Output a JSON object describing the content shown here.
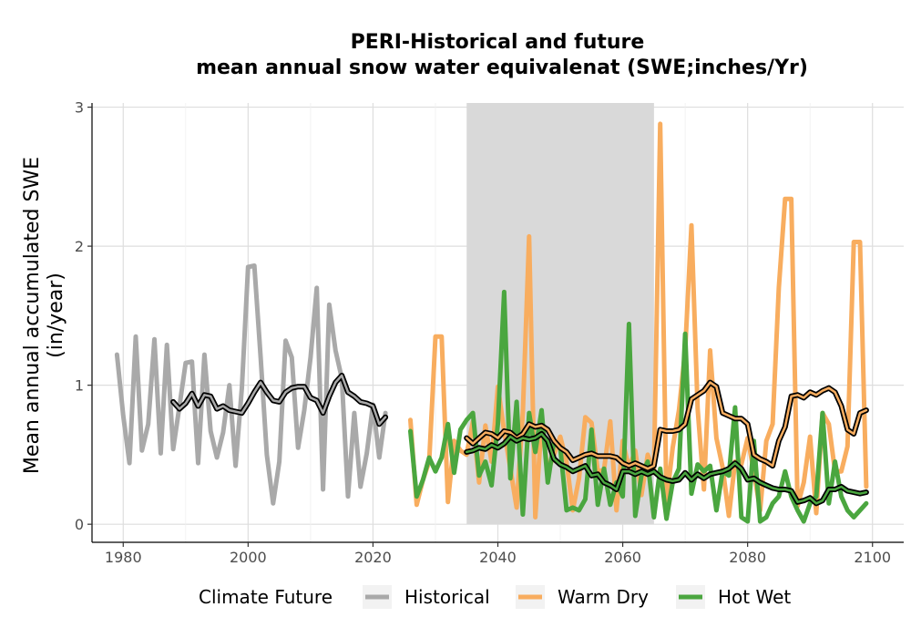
{
  "chart_data": {
    "type": "line",
    "title_line1": "PERI-Historical and future",
    "title_line2": "mean annual snow water equivalenat (SWE;inches/Yr)",
    "ylabel_line1": "Mean annual accumulated SWE",
    "ylabel_line2": "(in/year)",
    "xlabel": "",
    "xlim": [
      1975,
      2105
    ],
    "ylim": [
      -0.13,
      3.03
    ],
    "x_ticks": [
      1980,
      2000,
      2020,
      2040,
      2060,
      2080,
      2100
    ],
    "y_ticks": [
      0,
      1,
      2,
      3
    ],
    "grid": true,
    "shaded_period": [
      2035,
      2065
    ],
    "legend": {
      "title": "Climate Future",
      "position": "bottom",
      "entries": [
        "Historical",
        "Warm Dry",
        "Hot Wet"
      ]
    },
    "colors": {
      "Historical": "#a9a9a9",
      "Warm Dry": "#f8ad5f",
      "Hot Wet": "#4aa63f",
      "smooth": "#000000",
      "shade": "#d9d9d9",
      "grid": "#dedede"
    },
    "series": [
      {
        "name": "Historical",
        "x": [
          1979,
          1980,
          1981,
          1982,
          1983,
          1984,
          1985,
          1986,
          1987,
          1988,
          1989,
          1990,
          1991,
          1992,
          1993,
          1994,
          1995,
          1996,
          1997,
          1998,
          1999,
          2000,
          2001,
          2002,
          2003,
          2004,
          2005,
          2006,
          2007,
          2008,
          2009,
          2010,
          2011,
          2012,
          2013,
          2014,
          2015,
          2016,
          2017,
          2018,
          2019,
          2020,
          2021,
          2022
        ],
        "y": [
          1.22,
          0.78,
          0.44,
          1.35,
          0.53,
          0.72,
          1.33,
          0.51,
          1.29,
          0.54,
          0.85,
          1.16,
          1.17,
          0.44,
          1.22,
          0.67,
          0.48,
          0.66,
          1.0,
          0.42,
          0.98,
          1.85,
          1.86,
          1.2,
          0.5,
          0.15,
          0.45,
          1.32,
          1.2,
          0.55,
          0.82,
          1.2,
          1.7,
          0.25,
          1.58,
          1.25,
          1.05,
          0.2,
          0.8,
          0.27,
          0.51,
          0.86,
          0.48,
          0.8
        ],
        "smooth_x": [
          1988,
          1989,
          1990,
          1991,
          1992,
          1993,
          1994,
          1995,
          1996,
          1997,
          1998,
          1999,
          2000,
          2001,
          2002,
          2003,
          2004,
          2005,
          2006,
          2007,
          2008,
          2009,
          2010,
          2011,
          2012,
          2013,
          2014,
          2015,
          2016,
          2017,
          2018,
          2019,
          2020,
          2021,
          2022
        ],
        "smooth_y": [
          0.88,
          0.83,
          0.87,
          0.94,
          0.85,
          0.93,
          0.92,
          0.83,
          0.85,
          0.82,
          0.81,
          0.8,
          0.87,
          0.95,
          1.02,
          0.95,
          0.89,
          0.88,
          0.95,
          0.98,
          0.99,
          0.99,
          0.91,
          0.89,
          0.8,
          0.92,
          1.02,
          1.07,
          0.95,
          0.92,
          0.88,
          0.87,
          0.85,
          0.72,
          0.77
        ]
      },
      {
        "name": "Warm Dry",
        "x": [
          2026,
          2027,
          2028,
          2029,
          2030,
          2031,
          2032,
          2033,
          2034,
          2035,
          2036,
          2037,
          2038,
          2039,
          2040,
          2041,
          2042,
          2043,
          2044,
          2045,
          2046,
          2047,
          2048,
          2049,
          2050,
          2051,
          2052,
          2053,
          2054,
          2055,
          2056,
          2057,
          2058,
          2059,
          2060,
          2061,
          2062,
          2063,
          2064,
          2065,
          2066,
          2067,
          2068,
          2069,
          2070,
          2071,
          2072,
          2073,
          2074,
          2075,
          2076,
          2077,
          2078,
          2079,
          2080,
          2081,
          2082,
          2083,
          2084,
          2085,
          2086,
          2087,
          2088,
          2089,
          2090,
          2091,
          2092,
          2093,
          2094,
          2095,
          2096,
          2097,
          2098,
          2099
        ],
        "y": [
          0.75,
          0.14,
          0.32,
          0.45,
          1.35,
          1.35,
          0.16,
          0.6,
          0.53,
          0.5,
          0.74,
          0.3,
          0.71,
          0.45,
          0.99,
          0.67,
          0.4,
          0.12,
          0.8,
          2.07,
          0.05,
          0.73,
          0.38,
          0.5,
          0.63,
          0.45,
          0.1,
          0.33,
          0.77,
          0.73,
          0.38,
          0.39,
          0.74,
          0.1,
          0.6,
          0.4,
          0.53,
          0.21,
          0.5,
          0.37,
          2.88,
          0.16,
          0.55,
          0.82,
          1.25,
          2.15,
          0.83,
          0.25,
          1.25,
          0.62,
          0.41,
          0.06,
          0.45,
          0.43,
          0.62,
          0.38,
          0.1,
          0.6,
          0.72,
          1.7,
          2.34,
          2.34,
          0.13,
          0.3,
          0.63,
          0.08,
          0.8,
          0.72,
          0.38,
          0.38,
          0.56,
          2.03,
          2.03,
          0.27
        ],
        "smooth_x": [
          2035,
          2036,
          2037,
          2038,
          2039,
          2040,
          2041,
          2042,
          2043,
          2044,
          2045,
          2046,
          2047,
          2048,
          2049,
          2050,
          2051,
          2052,
          2053,
          2054,
          2055,
          2056,
          2057,
          2058,
          2059,
          2060,
          2061,
          2062,
          2063,
          2064,
          2065,
          2066,
          2067,
          2068,
          2069,
          2070,
          2071,
          2072,
          2073,
          2074,
          2075,
          2076,
          2077,
          2078,
          2079,
          2080,
          2081,
          2082,
          2083,
          2084,
          2085,
          2086,
          2087,
          2088,
          2089,
          2090,
          2091,
          2092,
          2093,
          2094,
          2095,
          2096,
          2097,
          2098,
          2099
        ],
        "smooth_y": [
          0.62,
          0.58,
          0.62,
          0.66,
          0.65,
          0.62,
          0.67,
          0.66,
          0.62,
          0.65,
          0.72,
          0.7,
          0.71,
          0.68,
          0.6,
          0.55,
          0.52,
          0.46,
          0.48,
          0.5,
          0.51,
          0.49,
          0.49,
          0.49,
          0.48,
          0.44,
          0.42,
          0.44,
          0.42,
          0.4,
          0.42,
          0.68,
          0.67,
          0.67,
          0.68,
          0.72,
          0.9,
          0.93,
          0.96,
          1.02,
          0.99,
          0.8,
          0.78,
          0.76,
          0.76,
          0.72,
          0.5,
          0.47,
          0.45,
          0.42,
          0.6,
          0.7,
          0.92,
          0.93,
          0.91,
          0.95,
          0.93,
          0.96,
          0.98,
          0.95,
          0.85,
          0.68,
          0.65,
          0.8,
          0.82
        ]
      },
      {
        "name": "Hot Wet",
        "x": [
          2026,
          2027,
          2028,
          2029,
          2030,
          2031,
          2032,
          2033,
          2034,
          2035,
          2036,
          2037,
          2038,
          2039,
          2040,
          2041,
          2042,
          2043,
          2044,
          2045,
          2046,
          2047,
          2048,
          2049,
          2050,
          2051,
          2052,
          2053,
          2054,
          2055,
          2056,
          2057,
          2058,
          2059,
          2060,
          2061,
          2062,
          2063,
          2064,
          2065,
          2066,
          2067,
          2068,
          2069,
          2070,
          2071,
          2072,
          2073,
          2074,
          2075,
          2076,
          2077,
          2078,
          2079,
          2080,
          2081,
          2082,
          2083,
          2084,
          2085,
          2086,
          2087,
          2088,
          2089,
          2090,
          2091,
          2092,
          2093,
          2094,
          2095,
          2096,
          2097,
          2098,
          2099
        ],
        "y": [
          0.67,
          0.2,
          0.32,
          0.48,
          0.38,
          0.48,
          0.72,
          0.37,
          0.68,
          0.75,
          0.8,
          0.35,
          0.45,
          0.28,
          0.72,
          1.67,
          0.33,
          0.88,
          0.07,
          0.8,
          0.52,
          0.82,
          0.3,
          0.6,
          0.55,
          0.1,
          0.12,
          0.1,
          0.18,
          0.68,
          0.14,
          0.4,
          0.14,
          0.3,
          0.2,
          1.44,
          0.06,
          0.35,
          0.45,
          0.05,
          0.4,
          0.04,
          0.3,
          0.4,
          1.37,
          0.22,
          0.43,
          0.38,
          0.42,
          0.1,
          0.38,
          0.35,
          0.84,
          0.05,
          0.02,
          0.6,
          0.02,
          0.05,
          0.15,
          0.2,
          0.38,
          0.2,
          0.1,
          0.02,
          0.15,
          0.2,
          0.8,
          0.15,
          0.45,
          0.2,
          0.1,
          0.05,
          0.1,
          0.15
        ],
        "smooth_x": [
          2035,
          2036,
          2037,
          2038,
          2039,
          2040,
          2041,
          2042,
          2043,
          2044,
          2045,
          2046,
          2047,
          2048,
          2049,
          2050,
          2051,
          2052,
          2053,
          2054,
          2055,
          2056,
          2057,
          2058,
          2059,
          2060,
          2061,
          2062,
          2063,
          2064,
          2065,
          2066,
          2067,
          2068,
          2069,
          2070,
          2071,
          2072,
          2073,
          2074,
          2075,
          2076,
          2077,
          2078,
          2079,
          2080,
          2081,
          2082,
          2083,
          2084,
          2085,
          2086,
          2087,
          2088,
          2089,
          2090,
          2091,
          2092,
          2093,
          2094,
          2095,
          2096,
          2097,
          2098,
          2099
        ],
        "smooth_y": [
          0.52,
          0.53,
          0.55,
          0.54,
          0.57,
          0.55,
          0.58,
          0.63,
          0.6,
          0.62,
          0.61,
          0.62,
          0.65,
          0.6,
          0.47,
          0.43,
          0.41,
          0.38,
          0.4,
          0.42,
          0.35,
          0.36,
          0.3,
          0.28,
          0.25,
          0.38,
          0.38,
          0.36,
          0.38,
          0.36,
          0.38,
          0.34,
          0.32,
          0.31,
          0.32,
          0.37,
          0.32,
          0.36,
          0.33,
          0.36,
          0.37,
          0.38,
          0.4,
          0.44,
          0.4,
          0.32,
          0.33,
          0.3,
          0.28,
          0.26,
          0.25,
          0.25,
          0.24,
          0.16,
          0.17,
          0.19,
          0.15,
          0.17,
          0.25,
          0.25,
          0.27,
          0.24,
          0.23,
          0.22,
          0.23
        ]
      }
    ]
  }
}
